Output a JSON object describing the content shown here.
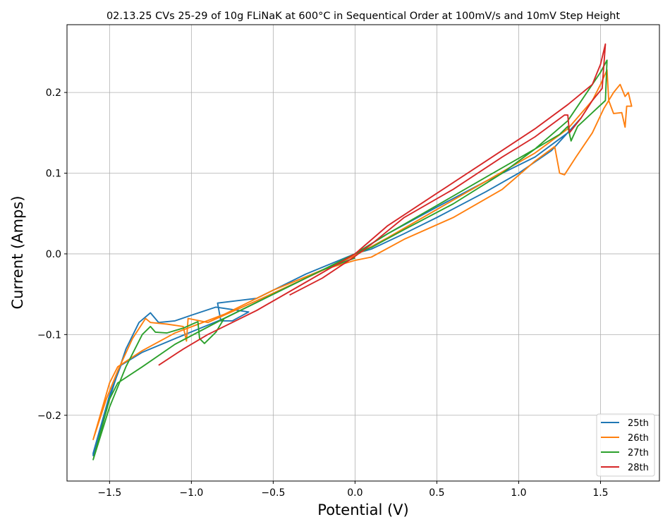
{
  "chart_data": {
    "type": "line",
    "title": "02.13.25 CVs 25-29 of 10g FLiNaK at 600°C in Sequentical Order at 100mV/s and 10mV Step Height",
    "xlabel": "Potential (V)",
    "ylabel": "Current (Amps)",
    "xlim": [
      -1.76,
      1.86
    ],
    "ylim": [
      -0.2815,
      0.284
    ],
    "xticks": [
      -1.5,
      -1.0,
      -0.5,
      0.0,
      0.5,
      1.0,
      1.5
    ],
    "xtick_labels": [
      "−1.5",
      "−1.0",
      "−0.5",
      "0.0",
      "0.5",
      "1.0",
      "1.5"
    ],
    "yticks": [
      -0.2,
      -0.1,
      0.0,
      0.1,
      0.2
    ],
    "ytick_labels": [
      "−0.2",
      "−0.1",
      "0.0",
      "0.1",
      "0.2"
    ],
    "grid": true,
    "legend_position": "lower-right",
    "series": [
      {
        "name": "25th",
        "color": "#1f77b4",
        "points": [
          [
            0.0,
            0.0
          ],
          [
            0.1,
            0.006
          ],
          [
            0.3,
            0.025
          ],
          [
            0.5,
            0.045
          ],
          [
            0.8,
            0.077
          ],
          [
            1.0,
            0.1
          ],
          [
            1.2,
            0.128
          ],
          [
            1.38,
            0.168
          ],
          [
            1.3,
            0.15
          ],
          [
            1.1,
            0.12
          ],
          [
            0.8,
            0.09
          ],
          [
            0.5,
            0.058
          ],
          [
            0.2,
            0.025
          ],
          [
            0.0,
            0.0
          ],
          [
            -0.3,
            -0.025
          ],
          [
            -0.6,
            -0.055
          ],
          [
            -0.84,
            -0.061
          ],
          [
            -0.82,
            -0.083
          ],
          [
            -0.75,
            -0.083
          ],
          [
            -0.65,
            -0.072
          ],
          [
            -0.85,
            -0.066
          ],
          [
            -1.0,
            -0.076
          ],
          [
            -1.1,
            -0.083
          ],
          [
            -1.2,
            -0.085
          ],
          [
            -1.25,
            -0.073
          ],
          [
            -1.32,
            -0.085
          ],
          [
            -1.4,
            -0.118
          ],
          [
            -1.47,
            -0.16
          ],
          [
            -1.53,
            -0.2
          ],
          [
            -1.6,
            -0.25
          ],
          [
            -1.6,
            -0.247
          ],
          [
            -1.5,
            -0.175
          ],
          [
            -1.43,
            -0.138
          ],
          [
            -1.3,
            -0.122
          ],
          [
            -1.1,
            -0.105
          ],
          [
            -0.8,
            -0.08
          ],
          [
            -0.5,
            -0.05
          ],
          [
            -0.2,
            -0.02
          ],
          [
            0.0,
            -0.005
          ]
        ]
      },
      {
        "name": "26th",
        "color": "#ff7f0e",
        "points": [
          [
            0.0,
            -0.008
          ],
          [
            0.1,
            -0.004
          ],
          [
            0.3,
            0.018
          ],
          [
            0.6,
            0.045
          ],
          [
            0.9,
            0.08
          ],
          [
            1.1,
            0.115
          ],
          [
            1.22,
            0.133
          ],
          [
            1.25,
            0.1
          ],
          [
            1.28,
            0.098
          ],
          [
            1.35,
            0.12
          ],
          [
            1.45,
            0.15
          ],
          [
            1.52,
            0.18
          ],
          [
            1.58,
            0.2
          ],
          [
            1.62,
            0.21
          ],
          [
            1.65,
            0.195
          ],
          [
            1.67,
            0.2
          ],
          [
            1.69,
            0.183
          ],
          [
            1.66,
            0.183
          ],
          [
            1.65,
            0.157
          ],
          [
            1.63,
            0.175
          ],
          [
            1.58,
            0.174
          ],
          [
            1.55,
            0.19
          ],
          [
            1.54,
            0.228
          ],
          [
            1.5,
            0.21
          ],
          [
            1.45,
            0.19
          ],
          [
            1.3,
            0.155
          ],
          [
            1.1,
            0.125
          ],
          [
            0.8,
            0.09
          ],
          [
            0.5,
            0.055
          ],
          [
            0.2,
            0.02
          ],
          [
            0.0,
            -0.002
          ],
          [
            -0.3,
            -0.03
          ],
          [
            -0.6,
            -0.058
          ],
          [
            -0.9,
            -0.085
          ],
          [
            -1.02,
            -0.08
          ],
          [
            -1.03,
            -0.108
          ],
          [
            -1.05,
            -0.09
          ],
          [
            -1.15,
            -0.087
          ],
          [
            -1.25,
            -0.085
          ],
          [
            -1.28,
            -0.08
          ],
          [
            -1.36,
            -0.105
          ],
          [
            -1.45,
            -0.145
          ],
          [
            -1.52,
            -0.18
          ],
          [
            -1.6,
            -0.23
          ],
          [
            -1.6,
            -0.23
          ],
          [
            -1.5,
            -0.16
          ],
          [
            -1.45,
            -0.14
          ],
          [
            -1.3,
            -0.12
          ],
          [
            -1.1,
            -0.098
          ],
          [
            -0.8,
            -0.075
          ],
          [
            -0.5,
            -0.045
          ],
          [
            -0.2,
            -0.02
          ],
          [
            0.0,
            -0.008
          ]
        ]
      },
      {
        "name": "27th",
        "color": "#2ca02c",
        "points": [
          [
            0.0,
            0.0
          ],
          [
            0.1,
            0.008
          ],
          [
            0.3,
            0.03
          ],
          [
            0.6,
            0.062
          ],
          [
            0.9,
            0.1
          ],
          [
            1.1,
            0.13
          ],
          [
            1.25,
            0.148
          ],
          [
            1.3,
            0.158
          ],
          [
            1.32,
            0.14
          ],
          [
            1.36,
            0.158
          ],
          [
            1.45,
            0.175
          ],
          [
            1.53,
            0.19
          ],
          [
            1.54,
            0.24
          ],
          [
            1.5,
            0.225
          ],
          [
            1.45,
            0.21
          ],
          [
            1.3,
            0.165
          ],
          [
            1.1,
            0.13
          ],
          [
            0.8,
            0.095
          ],
          [
            0.5,
            0.06
          ],
          [
            0.2,
            0.025
          ],
          [
            0.0,
            0.0
          ],
          [
            -0.3,
            -0.03
          ],
          [
            -0.6,
            -0.06
          ],
          [
            -0.8,
            -0.08
          ],
          [
            -0.85,
            -0.097
          ],
          [
            -0.92,
            -0.111
          ],
          [
            -0.95,
            -0.105
          ],
          [
            -0.96,
            -0.084
          ],
          [
            -1.05,
            -0.092
          ],
          [
            -1.15,
            -0.098
          ],
          [
            -1.22,
            -0.097
          ],
          [
            -1.25,
            -0.09
          ],
          [
            -1.3,
            -0.1
          ],
          [
            -1.4,
            -0.14
          ],
          [
            -1.5,
            -0.19
          ],
          [
            -1.6,
            -0.255
          ],
          [
            -1.6,
            -0.255
          ],
          [
            -1.5,
            -0.18
          ],
          [
            -1.45,
            -0.16
          ],
          [
            -1.3,
            -0.14
          ],
          [
            -1.1,
            -0.112
          ],
          [
            -0.8,
            -0.08
          ],
          [
            -0.5,
            -0.05
          ],
          [
            -0.2,
            -0.02
          ],
          [
            0.0,
            -0.005
          ]
        ]
      },
      {
        "name": "28th",
        "color": "#d62728",
        "points": [
          [
            -0.4,
            -0.051
          ],
          [
            -0.2,
            -0.03
          ],
          [
            0.0,
            -0.003
          ],
          [
            0.1,
            0.012
          ],
          [
            0.3,
            0.045
          ],
          [
            0.6,
            0.08
          ],
          [
            0.9,
            0.12
          ],
          [
            1.1,
            0.145
          ],
          [
            1.28,
            0.172
          ],
          [
            1.3,
            0.172
          ],
          [
            1.31,
            0.15
          ],
          [
            1.38,
            0.168
          ],
          [
            1.45,
            0.19
          ],
          [
            1.51,
            0.205
          ],
          [
            1.53,
            0.26
          ],
          [
            1.5,
            0.235
          ],
          [
            1.45,
            0.21
          ],
          [
            1.3,
            0.185
          ],
          [
            1.1,
            0.155
          ],
          [
            0.8,
            0.115
          ],
          [
            0.5,
            0.075
          ],
          [
            0.2,
            0.035
          ],
          [
            0.0,
            0.0
          ],
          [
            -0.3,
            -0.035
          ],
          [
            -0.6,
            -0.07
          ],
          [
            -0.9,
            -0.1
          ],
          [
            -1.05,
            -0.118
          ],
          [
            -1.2,
            -0.138
          ]
        ]
      }
    ]
  }
}
